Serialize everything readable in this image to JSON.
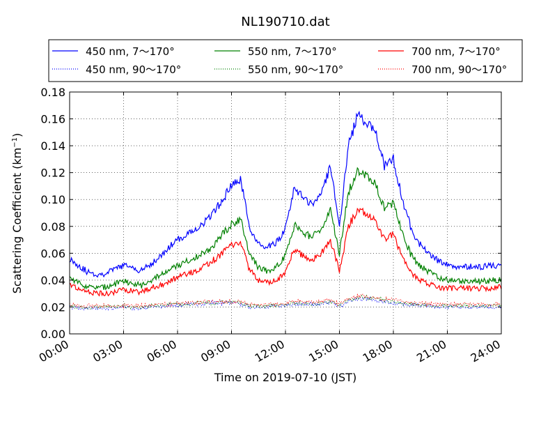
{
  "chart_data": {
    "type": "line",
    "title": "NL190710.dat",
    "xlabel": "Time on 2019-07-10 (JST)",
    "ylabel_main": "Scattering Coefficient (km",
    "ylabel_sup": "−1",
    "ylabel_close": ")",
    "xlim": [
      0,
      24
    ],
    "ylim": [
      0,
      0.18
    ],
    "xticks": [
      0,
      3,
      6,
      9,
      12,
      15,
      18,
      21,
      24
    ],
    "xtick_labels": [
      "00:00",
      "03:00",
      "06:00",
      "09:00",
      "12:00",
      "15:00",
      "18:00",
      "21:00",
      "24:00"
    ],
    "yticks": [
      0,
      0.02,
      0.04,
      0.06,
      0.08,
      0.1,
      0.12,
      0.14,
      0.16,
      0.18
    ],
    "ytick_labels": [
      "0.00",
      "0.02",
      "0.04",
      "0.06",
      "0.08",
      "0.10",
      "0.12",
      "0.14",
      "0.16",
      "0.18"
    ],
    "grid": true,
    "legend_position": "top",
    "x_hours": [
      0,
      0.5,
      1,
      1.5,
      2,
      2.5,
      3,
      3.5,
      4,
      4.5,
      5,
      5.5,
      6,
      6.5,
      7,
      7.5,
      8,
      8.5,
      9,
      9.5,
      10,
      10.5,
      11,
      11.5,
      12,
      12.5,
      13,
      13.5,
      14,
      14.5,
      15,
      15.5,
      16,
      16.5,
      17,
      17.5,
      18,
      18.5,
      19,
      19.5,
      20,
      20.5,
      21,
      21.5,
      22,
      22.5,
      23,
      23.5,
      24
    ],
    "series": [
      {
        "name": "450 nm, 7～170°",
        "color": "#0000ff",
        "style": "solid",
        "values": [
          0.056,
          0.051,
          0.046,
          0.044,
          0.045,
          0.048,
          0.051,
          0.049,
          0.047,
          0.052,
          0.057,
          0.064,
          0.07,
          0.074,
          0.078,
          0.083,
          0.09,
          0.1,
          0.11,
          0.115,
          0.08,
          0.066,
          0.064,
          0.068,
          0.078,
          0.11,
          0.1,
          0.097,
          0.105,
          0.125,
          0.08,
          0.14,
          0.162,
          0.158,
          0.15,
          0.125,
          0.13,
          0.1,
          0.078,
          0.066,
          0.06,
          0.054,
          0.052,
          0.05,
          0.05,
          0.05,
          0.05,
          0.051,
          0.051
        ]
      },
      {
        "name": "450 nm, 90～170°",
        "color": "#0000ff",
        "style": "dotted",
        "values": [
          0.02,
          0.019,
          0.019,
          0.019,
          0.019,
          0.019,
          0.02,
          0.019,
          0.019,
          0.02,
          0.02,
          0.021,
          0.021,
          0.022,
          0.022,
          0.022,
          0.023,
          0.023,
          0.023,
          0.022,
          0.02,
          0.02,
          0.02,
          0.021,
          0.021,
          0.022,
          0.022,
          0.022,
          0.022,
          0.023,
          0.02,
          0.024,
          0.026,
          0.026,
          0.025,
          0.024,
          0.023,
          0.022,
          0.022,
          0.021,
          0.021,
          0.02,
          0.02,
          0.02,
          0.02,
          0.02,
          0.02,
          0.02,
          0.02
        ]
      },
      {
        "name": "550 nm, 7～170°",
        "color": "#008000",
        "style": "solid",
        "values": [
          0.042,
          0.038,
          0.035,
          0.034,
          0.035,
          0.037,
          0.039,
          0.038,
          0.036,
          0.04,
          0.043,
          0.047,
          0.051,
          0.054,
          0.057,
          0.06,
          0.066,
          0.074,
          0.082,
          0.085,
          0.06,
          0.049,
          0.047,
          0.05,
          0.058,
          0.081,
          0.075,
          0.072,
          0.078,
          0.092,
          0.06,
          0.105,
          0.122,
          0.118,
          0.112,
          0.093,
          0.097,
          0.075,
          0.058,
          0.05,
          0.046,
          0.042,
          0.04,
          0.039,
          0.039,
          0.039,
          0.039,
          0.04,
          0.04
        ]
      },
      {
        "name": "550 nm, 90～170°",
        "color": "#008000",
        "style": "dotted",
        "values": [
          0.021,
          0.02,
          0.02,
          0.02,
          0.02,
          0.02,
          0.021,
          0.02,
          0.02,
          0.021,
          0.021,
          0.022,
          0.022,
          0.022,
          0.023,
          0.023,
          0.023,
          0.024,
          0.024,
          0.023,
          0.021,
          0.021,
          0.021,
          0.021,
          0.022,
          0.023,
          0.023,
          0.022,
          0.023,
          0.024,
          0.021,
          0.025,
          0.027,
          0.027,
          0.026,
          0.025,
          0.024,
          0.023,
          0.022,
          0.022,
          0.021,
          0.021,
          0.021,
          0.021,
          0.021,
          0.021,
          0.021,
          0.021,
          0.021
        ]
      },
      {
        "name": "700 nm, 7～170°",
        "color": "#ff0000",
        "style": "solid",
        "values": [
          0.036,
          0.033,
          0.031,
          0.03,
          0.03,
          0.031,
          0.033,
          0.032,
          0.031,
          0.034,
          0.036,
          0.039,
          0.042,
          0.045,
          0.047,
          0.05,
          0.055,
          0.06,
          0.066,
          0.068,
          0.048,
          0.04,
          0.038,
          0.04,
          0.046,
          0.063,
          0.058,
          0.055,
          0.06,
          0.07,
          0.047,
          0.08,
          0.092,
          0.09,
          0.085,
          0.07,
          0.074,
          0.057,
          0.045,
          0.04,
          0.037,
          0.035,
          0.034,
          0.034,
          0.034,
          0.034,
          0.034,
          0.034,
          0.035
        ]
      },
      {
        "name": "700 nm, 90～170°",
        "color": "#ff0000",
        "style": "dotted",
        "values": [
          0.022,
          0.021,
          0.021,
          0.021,
          0.021,
          0.021,
          0.021,
          0.021,
          0.021,
          0.022,
          0.022,
          0.022,
          0.023,
          0.023,
          0.023,
          0.024,
          0.024,
          0.024,
          0.024,
          0.024,
          0.022,
          0.022,
          0.022,
          0.022,
          0.023,
          0.024,
          0.024,
          0.023,
          0.024,
          0.025,
          0.022,
          0.026,
          0.028,
          0.028,
          0.027,
          0.026,
          0.025,
          0.024,
          0.023,
          0.023,
          0.022,
          0.022,
          0.022,
          0.022,
          0.022,
          0.022,
          0.022,
          0.022,
          0.022
        ]
      }
    ]
  }
}
